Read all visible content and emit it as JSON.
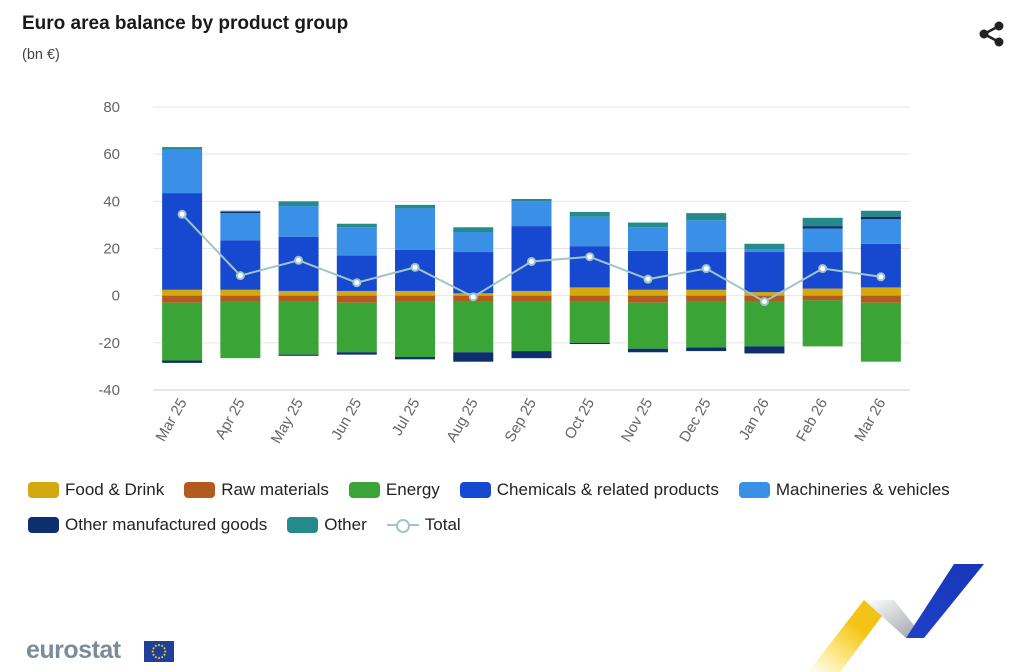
{
  "header": {
    "title": "Euro area balance by product group",
    "subtitle": "(bn €)"
  },
  "icons": {
    "share": "share-icon"
  },
  "footer": {
    "logo_text": "eurostat"
  },
  "colors": {
    "food": "#d4a90f",
    "raw": "#b35a1f",
    "energy": "#3aa536",
    "chemicals": "#1749d0",
    "machinery": "#3a8fe6",
    "other_manufactured": "#0e2f6e",
    "other": "#248a8a",
    "total": "#9ec6c9",
    "grid": "#e6e6e6",
    "axis_text": "#666666"
  },
  "chart_data": {
    "type": "bar",
    "stacked": true,
    "title": "Euro area balance by product group",
    "subtitle": "(bn €)",
    "categories": [
      "Mar 25",
      "Apr 25",
      "May 25",
      "Jun 25",
      "Jul 25",
      "Aug 25",
      "Sep 25",
      "Oct 25",
      "Nov 25",
      "Dec 25",
      "Jan 26",
      "Feb 26",
      "Mar 26"
    ],
    "ylim": [
      -40,
      80
    ],
    "yticks": [
      80,
      60,
      40,
      20,
      0,
      -20,
      -40
    ],
    "grid": true,
    "legend_position": "bottom",
    "series": [
      {
        "name": "Food & Drink",
        "key": "food",
        "values": [
          2.5,
          2.5,
          2.0,
          2.0,
          2.0,
          1.0,
          2.0,
          3.5,
          2.5,
          2.5,
          1.5,
          3.0,
          3.5
        ]
      },
      {
        "name": "Raw materials",
        "key": "raw",
        "values": [
          -3.0,
          -2.5,
          -2.5,
          -3.0,
          -2.5,
          -2.5,
          -2.5,
          -2.5,
          -3.0,
          -2.5,
          -2.5,
          -2.0,
          -3.0
        ]
      },
      {
        "name": "Energy",
        "key": "energy",
        "values": [
          -24.5,
          -24.0,
          -22.5,
          -21.0,
          -23.5,
          -21.5,
          -21.0,
          -17.5,
          -19.5,
          -19.5,
          -19.0,
          -19.5,
          -25.0
        ]
      },
      {
        "name": "Chemicals & related products",
        "key": "chemicals",
        "values": [
          41.0,
          21.0,
          23.0,
          15.0,
          17.5,
          17.5,
          27.5,
          17.5,
          16.5,
          16.0,
          17.0,
          15.5,
          18.5
        ]
      },
      {
        "name": "Machineries & vehicles",
        "key": "machinery",
        "values": [
          18.5,
          11.5,
          13.0,
          12.0,
          17.5,
          8.5,
          10.5,
          12.5,
          10.0,
          13.5,
          1.0,
          10.0,
          10.5
        ]
      },
      {
        "name": "Other manufactured goods",
        "key": "other_manufactured",
        "values": [
          -1.0,
          0.5,
          -0.5,
          -1.0,
          -1.0,
          -4.0,
          -3.0,
          -0.5,
          -1.5,
          -1.5,
          -3.0,
          1.0,
          1.0
        ]
      },
      {
        "name": "Other",
        "key": "other",
        "values": [
          1.0,
          0.5,
          2.0,
          1.5,
          1.5,
          2.0,
          1.0,
          2.0,
          2.0,
          3.0,
          2.5,
          3.5,
          2.5
        ]
      },
      {
        "name": "Total",
        "key": "total",
        "type": "line",
        "values": [
          34.5,
          8.5,
          15.0,
          5.5,
          12.0,
          -0.5,
          14.5,
          16.5,
          7.0,
          11.5,
          -2.5,
          11.5,
          8.0
        ]
      }
    ]
  }
}
